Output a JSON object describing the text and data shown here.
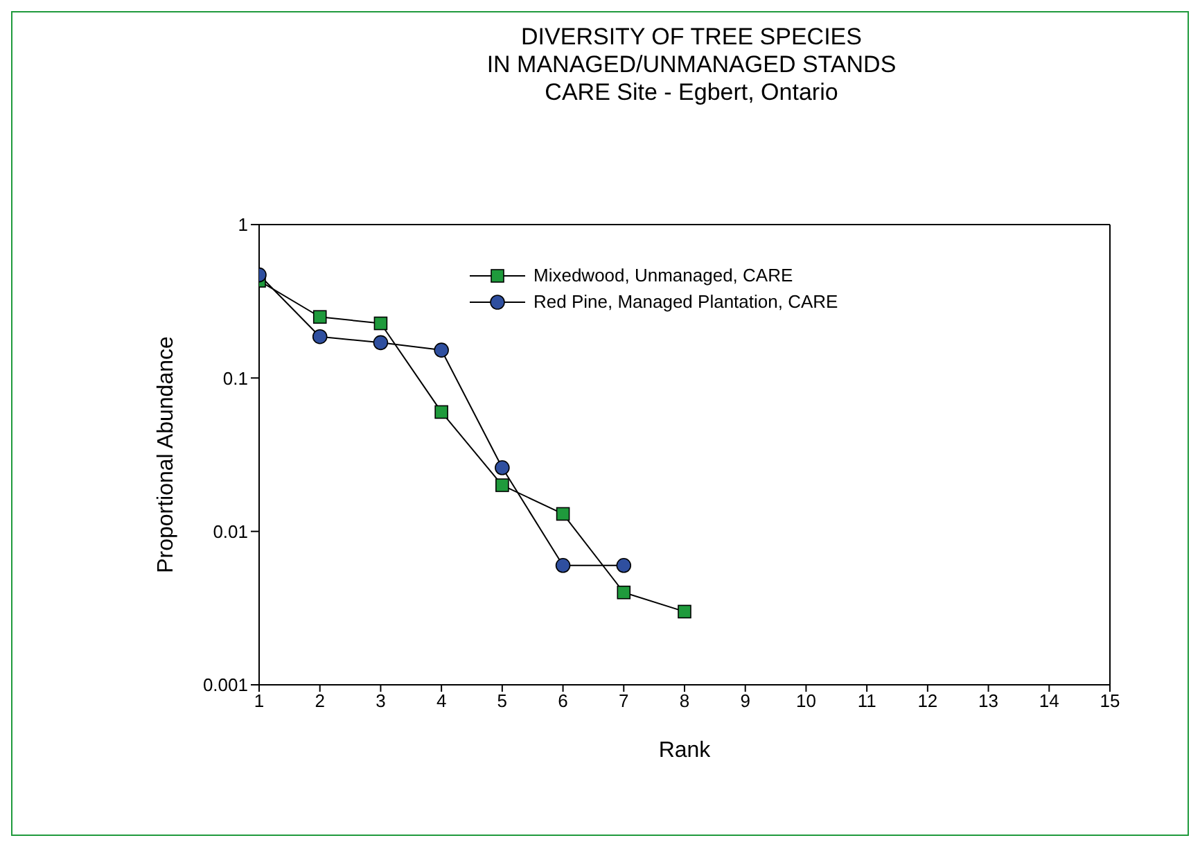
{
  "chart_data": {
    "type": "line",
    "title": "DIVERSITY OF TREE SPECIES\nIN MANAGED/UNMANAGED STANDS\nCARE Site - Egbert, Ontario",
    "xlabel": "Rank",
    "ylabel": "Proportional Abundance",
    "x": [
      1,
      2,
      3,
      4,
      5,
      6,
      7,
      8
    ],
    "series": [
      {
        "name": "Mixedwood, Unmanaged, CARE",
        "color": "#1f9a3c",
        "marker": "square",
        "values": [
          0.43,
          0.25,
          0.227,
          0.06,
          0.02,
          0.013,
          0.004,
          0.003
        ]
      },
      {
        "name": "Red Pine, Managed Plantation, CARE",
        "color": "#2f4f9f",
        "marker": "circle",
        "values": [
          0.47,
          0.186,
          0.17,
          0.152,
          0.026,
          0.006,
          0.006,
          null
        ]
      }
    ],
    "xlim": [
      1,
      15
    ],
    "xticks": [
      1,
      2,
      3,
      4,
      5,
      6,
      7,
      8,
      9,
      10,
      11,
      12,
      13,
      14,
      15
    ],
    "ylim": [
      0.001,
      1
    ],
    "yticks": [
      0.001,
      0.01,
      0.1,
      1
    ],
    "log": "y",
    "grid": false,
    "legend": "top right",
    "line_style": "solid"
  }
}
